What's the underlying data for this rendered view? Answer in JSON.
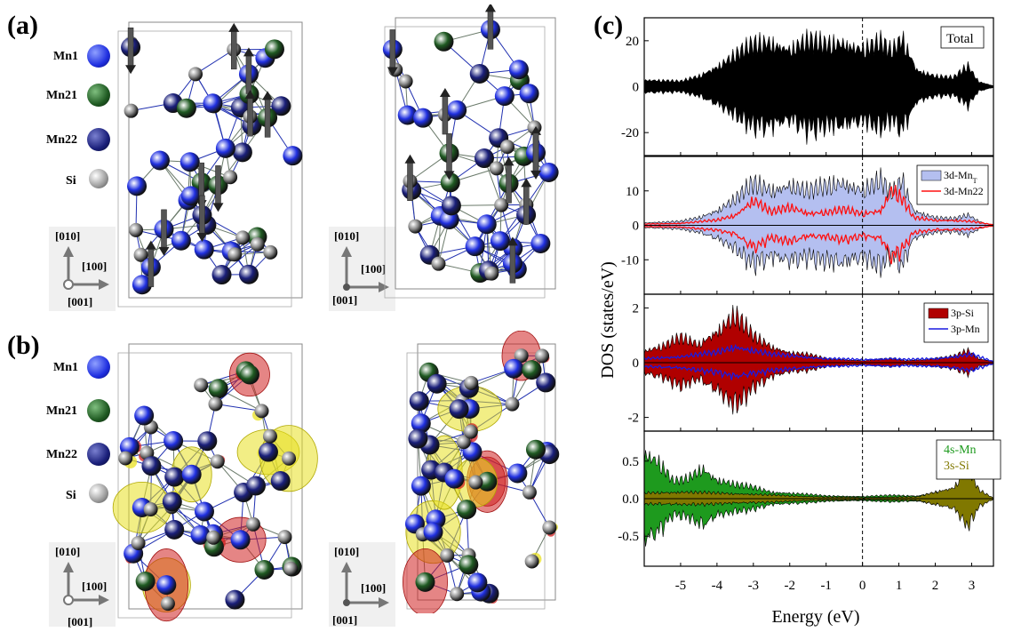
{
  "panels": {
    "a": "(a)",
    "b": "(b)",
    "c": "(c)"
  },
  "legend": {
    "items": [
      {
        "label": "Mn1",
        "color": "#1f2fe0"
      },
      {
        "label": "Mn21",
        "color": "#1f5a22"
      },
      {
        "label": "Mn22",
        "color": "#1a1f7a"
      },
      {
        "label": "Si",
        "color": "#8a8a8a"
      }
    ]
  },
  "axes_labels": {
    "a": "[010]",
    "b": "[100]",
    "c": "[001]"
  },
  "colors": {
    "mn1": "#1f2fe0",
    "mn21": "#1f5a22",
    "mn22": "#1a1f7a",
    "si": "#8a8a8a",
    "spin_up": "#d02020",
    "spin_down": "#e8e020",
    "total": "#000000",
    "mnt_fill": "#b4bff0",
    "mn22_line": "#ff1010",
    "si3p_fill": "#b00000",
    "mn3p_line": "#1a1ae0",
    "mn4s_fill": "#1e9a1e",
    "si3s_fill": "#807800"
  },
  "chart_data": {
    "type": "area",
    "xlabel": "Energy (eV)",
    "ylabel": "DOS (states/eV)",
    "xlim": [
      -6,
      3.6
    ],
    "xticks": [
      "-5",
      "-4",
      "-3",
      "-2",
      "-1",
      "0",
      "1",
      "2",
      "3"
    ],
    "fermi_line": 0,
    "subplots": [
      {
        "ylim": [
          -30,
          30
        ],
        "yticks": [
          "20",
          "0",
          "-20"
        ],
        "legend": [
          "Total"
        ],
        "series": [
          {
            "name": "Total",
            "style": "fill",
            "envelope": [
              [
                -6,
                4
              ],
              [
                -5,
                3
              ],
              [
                -4.5,
                6
              ],
              [
                -4,
                12
              ],
              [
                -3.5,
                18
              ],
              [
                -3,
                24
              ],
              [
                -2.5,
                26
              ],
              [
                -2,
                22
              ],
              [
                -1.5,
                26
              ],
              [
                -1,
                24
              ],
              [
                -0.5,
                26
              ],
              [
                0,
                22
              ],
              [
                0.5,
                25
              ],
              [
                0.8,
                20
              ],
              [
                1.1,
                28
              ],
              [
                1.5,
                10
              ],
              [
                2,
                6
              ],
              [
                2.5,
                5
              ],
              [
                2.9,
                12
              ],
              [
                3.2,
                3
              ],
              [
                3.6,
                0.5
              ]
            ]
          }
        ]
      },
      {
        "ylim": [
          -20,
          20
        ],
        "yticks": [
          "10",
          "0",
          "-10"
        ],
        "legend": [
          "3d-Mn_T",
          "3d-Mn22"
        ],
        "series": [
          {
            "name": "3d-Mn_T",
            "style": "fill",
            "envelope": [
              [
                -6,
                1
              ],
              [
                -5,
                1.5
              ],
              [
                -4.5,
                3
              ],
              [
                -4,
                6
              ],
              [
                -3.5,
                10
              ],
              [
                -3,
                16
              ],
              [
                -2.5,
                14
              ],
              [
                -2,
                16
              ],
              [
                -1.5,
                13
              ],
              [
                -1,
                15
              ],
              [
                -0.5,
                17
              ],
              [
                0,
                14
              ],
              [
                0.5,
                17
              ],
              [
                0.8,
                12
              ],
              [
                1.1,
                18
              ],
              [
                1.4,
                6
              ],
              [
                2,
                3
              ],
              [
                2.5,
                2.5
              ],
              [
                2.9,
                4
              ],
              [
                3.3,
                1
              ],
              [
                3.6,
                0.3
              ]
            ]
          },
          {
            "name": "3d-Mn22",
            "style": "line",
            "envelope": [
              [
                -6,
                0.5
              ],
              [
                -5,
                0.8
              ],
              [
                -4,
                2
              ],
              [
                -3.5,
                4
              ],
              [
                -3,
                10
              ],
              [
                -2.5,
                5
              ],
              [
                -2,
                7
              ],
              [
                -1.5,
                5
              ],
              [
                -1,
                5
              ],
              [
                -0.5,
                6
              ],
              [
                0,
                4.5
              ],
              [
                0.5,
                6
              ],
              [
                0.8,
                14
              ],
              [
                1.1,
                10
              ],
              [
                1.4,
                3
              ],
              [
                2,
                2
              ],
              [
                2.5,
                2
              ],
              [
                3,
                1.5
              ],
              [
                3.6,
                0.2
              ]
            ]
          }
        ]
      },
      {
        "ylim": [
          -2.5,
          2.5
        ],
        "yticks": [
          "2",
          "0",
          "-2"
        ],
        "legend": [
          "3p-Si",
          "3p-Mn"
        ],
        "series": [
          {
            "name": "3p-Si",
            "style": "fill",
            "envelope": [
              [
                -6,
                0.6
              ],
              [
                -5.5,
                0.8
              ],
              [
                -5,
                1.2
              ],
              [
                -4.5,
                0.9
              ],
              [
                -4,
                1.6
              ],
              [
                -3.5,
                2.3
              ],
              [
                -3,
                1.3
              ],
              [
                -2.5,
                0.8
              ],
              [
                -2,
                0.5
              ],
              [
                -1.5,
                0.4
              ],
              [
                -1,
                0.2
              ],
              [
                0,
                0.1
              ],
              [
                0.8,
                0.2
              ],
              [
                1.2,
                0.1
              ],
              [
                2,
                0.2
              ],
              [
                2.5,
                0.3
              ],
              [
                2.9,
                0.6
              ],
              [
                3.2,
                0.2
              ],
              [
                3.6,
                0.05
              ]
            ]
          },
          {
            "name": "3p-Mn",
            "style": "line",
            "envelope": [
              [
                -6,
                0.2
              ],
              [
                -5,
                0.3
              ],
              [
                -4,
                0.5
              ],
              [
                -3.5,
                0.8
              ],
              [
                -3,
                0.6
              ],
              [
                -2.5,
                0.4
              ],
              [
                -2,
                0.35
              ],
              [
                -1,
                0.2
              ],
              [
                0,
                0.15
              ],
              [
                0.8,
                0.2
              ],
              [
                1.2,
                0.15
              ],
              [
                2,
                0.2
              ],
              [
                3,
                0.4
              ],
              [
                3.6,
                0.05
              ]
            ]
          }
        ]
      },
      {
        "ylim": [
          -0.9,
          0.9
        ],
        "yticks": [
          "0.5",
          "0.0",
          "-0.5"
        ],
        "legend": [
          "4s-Mn",
          "3s-Si"
        ],
        "series": [
          {
            "name": "4s-Mn",
            "style": "fill",
            "envelope": [
              [
                -6,
                0.85
              ],
              [
                -5.6,
                0.65
              ],
              [
                -5.2,
                0.3
              ],
              [
                -4.8,
                0.35
              ],
              [
                -4.4,
                0.55
              ],
              [
                -4,
                0.35
              ],
              [
                -3.5,
                0.25
              ],
              [
                -3,
                0.2
              ],
              [
                -2.5,
                0.12
              ],
              [
                -2,
                0.1
              ],
              [
                -1,
                0.05
              ],
              [
                0,
                0.04
              ],
              [
                0.8,
                0.06
              ],
              [
                1.5,
                0.05
              ],
              [
                2,
                0.1
              ],
              [
                2.5,
                0.08
              ],
              [
                3,
                0.1
              ],
              [
                3.6,
                0.01
              ]
            ]
          },
          {
            "name": "3s-Si",
            "style": "fill",
            "envelope": [
              [
                -6,
                0.1
              ],
              [
                -5,
                0.12
              ],
              [
                -4,
                0.1
              ],
              [
                -3,
                0.08
              ],
              [
                -2,
                0.05
              ],
              [
                -1,
                0.03
              ],
              [
                0,
                0.02
              ],
              [
                1,
                0.03
              ],
              [
                1.5,
                0.03
              ],
              [
                2,
                0.12
              ],
              [
                2.5,
                0.2
              ],
              [
                2.9,
                0.55
              ],
              [
                3.2,
                0.15
              ],
              [
                3.6,
                0.01
              ]
            ]
          }
        ]
      }
    ]
  }
}
